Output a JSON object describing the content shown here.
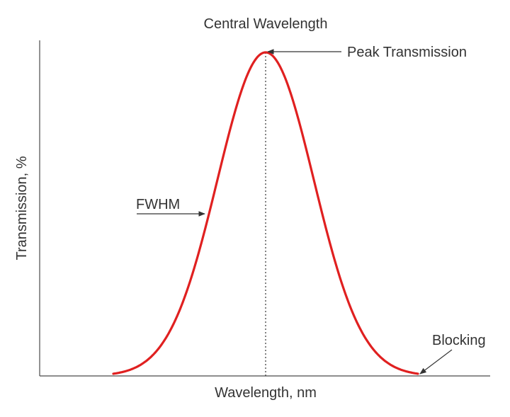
{
  "diagram": {
    "xlabel": "Wavelength, nm",
    "ylabel": "Transmission, %",
    "curve_color": "#e02020",
    "curve_shape": "bell (Gaussian-like) transmission band",
    "annotations": {
      "central_wavelength": "Central Wavelength",
      "peak_transmission": "Peak Transmission",
      "fwhm": "FWHM",
      "blocking": "Blocking"
    }
  }
}
